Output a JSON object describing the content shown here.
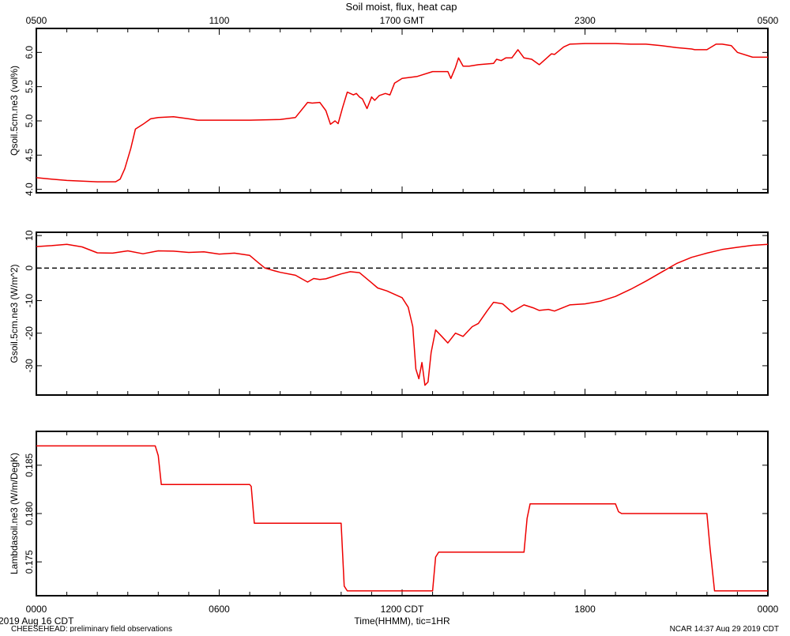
{
  "colors": {
    "series": "#ee0000",
    "frame": "#000000",
    "background": "#ffffff"
  },
  "page": {
    "title": "Soil moist, flux, heat cap",
    "footer_left_date": "2019 Aug 16 CDT",
    "footer_left_project": "CHEESEHEAD: preliminary field observations",
    "footer_right": "NCAR 14:37 Aug 29 2019 CDT"
  },
  "x_axis": {
    "range": [
      0,
      24
    ],
    "top_ticks": [
      {
        "x": 0,
        "label": "0500"
      },
      {
        "x": 6,
        "label": "1100"
      },
      {
        "x": 12,
        "label": "1700 GMT"
      },
      {
        "x": 18,
        "label": "2300"
      },
      {
        "x": 24,
        "label": "0500"
      }
    ],
    "bottom_ticks": [
      {
        "x": 0,
        "label": "0000"
      },
      {
        "x": 6,
        "label": "0600"
      },
      {
        "x": 12,
        "label": "1200 CDT"
      },
      {
        "x": 18,
        "label": "1800"
      },
      {
        "x": 24,
        "label": "0000"
      }
    ],
    "xlabel": "Time(HHMM), tic=1HR"
  },
  "chart_data": [
    {
      "type": "line",
      "ylabel": "Qsoil.5cm.ne3 (vol%)",
      "ylim": [
        3.95,
        6.35
      ],
      "yticks": [
        4.0,
        4.5,
        5.0,
        5.5,
        6.0
      ],
      "ytick_labels": [
        "4.0",
        "4.5",
        "5.0",
        "5.5",
        "6.0"
      ],
      "zero_line": false,
      "series": [
        {
          "x": [
            0,
            0.5,
            1,
            1.5,
            2,
            2.3,
            2.6,
            2.75,
            2.9,
            3.1,
            3.25,
            3.5,
            3.75,
            4,
            4.5,
            5,
            5.3,
            5.6,
            5.8,
            6,
            6.5,
            7,
            8,
            8.5,
            8.9,
            9.05,
            9.3,
            9.5,
            9.65,
            9.8,
            9.9,
            10.05,
            10.2,
            10.4,
            10.5,
            10.6,
            10.7,
            10.85,
            11,
            11.1,
            11.25,
            11.45,
            11.6,
            11.75,
            12,
            12.5,
            13,
            13.5,
            13.6,
            13.75,
            13.85,
            14,
            14.2,
            14.5,
            15,
            15.1,
            15.25,
            15.4,
            15.6,
            15.8,
            16,
            16.25,
            16.5,
            16.9,
            17,
            17.3,
            17.5,
            18,
            18.5,
            19,
            19.5,
            20,
            20.5,
            21,
            21.5,
            21.6,
            22,
            22.3,
            22.5,
            22.8,
            23,
            23.5,
            24
          ],
          "y": [
            4.17,
            4.15,
            4.13,
            4.12,
            4.11,
            4.11,
            4.11,
            4.15,
            4.3,
            4.6,
            4.88,
            4.95,
            5.03,
            5.05,
            5.06,
            5.03,
            5.01,
            5.01,
            5.01,
            5.01,
            5.01,
            5.01,
            5.02,
            5.05,
            5.27,
            5.26,
            5.27,
            5.15,
            4.95,
            5.0,
            4.96,
            5.2,
            5.42,
            5.38,
            5.4,
            5.35,
            5.32,
            5.18,
            5.35,
            5.3,
            5.37,
            5.4,
            5.38,
            5.55,
            5.62,
            5.65,
            5.72,
            5.72,
            5.62,
            5.78,
            5.92,
            5.8,
            5.8,
            5.82,
            5.84,
            5.9,
            5.88,
            5.92,
            5.92,
            6.04,
            5.92,
            5.9,
            5.82,
            5.98,
            5.97,
            6.08,
            6.12,
            6.13,
            6.13,
            6.13,
            6.12,
            6.12,
            6.1,
            6.07,
            6.05,
            6.04,
            6.04,
            6.12,
            6.12,
            6.1,
            6.0,
            5.93,
            5.93
          ]
        }
      ]
    },
    {
      "type": "line",
      "ylabel": "Gsoil.5cm.ne3 (W/m^2)",
      "ylim": [
        -39,
        11
      ],
      "yticks": [
        -30,
        -20,
        -10,
        0,
        10
      ],
      "ytick_labels": [
        "-30",
        "-20",
        "-10",
        "0",
        "10"
      ],
      "zero_line": true,
      "series": [
        {
          "x": [
            0,
            0.5,
            1,
            1.5,
            2,
            2.5,
            3,
            3.5,
            4,
            4.5,
            5,
            5.5,
            6,
            6.5,
            7,
            7.3,
            7.5,
            7.8,
            8,
            8.5,
            8.9,
            9.1,
            9.3,
            9.5,
            10,
            10.3,
            10.6,
            11,
            11.2,
            11.5,
            12,
            12.2,
            12.35,
            12.45,
            12.55,
            12.65,
            12.75,
            12.85,
            12.95,
            13.1,
            13.3,
            13.5,
            13.75,
            14,
            14.3,
            14.5,
            14.8,
            15,
            15.3,
            15.6,
            16,
            16.3,
            16.5,
            16.8,
            17,
            17.5,
            18,
            18.5,
            19,
            19.5,
            20,
            20.5,
            21,
            21.5,
            22,
            22.5,
            23,
            23.5,
            24
          ],
          "y": [
            6.6,
            6.9,
            7.3,
            6.5,
            4.7,
            4.6,
            5.3,
            4.4,
            5.3,
            5.2,
            4.8,
            5.0,
            4.3,
            4.6,
            3.9,
            1.5,
            0,
            -0.8,
            -1.3,
            -2.2,
            -4.3,
            -3.2,
            -3.5,
            -3.3,
            -1.8,
            -1.1,
            -1.4,
            -4.5,
            -6.1,
            -7.0,
            -9.1,
            -12,
            -18,
            -31,
            -34,
            -29,
            -36,
            -35,
            -26,
            -19,
            -21,
            -23,
            -20,
            -21,
            -18,
            -17,
            -13,
            -10.5,
            -11,
            -13.5,
            -11.3,
            -12.2,
            -13,
            -12.7,
            -13.2,
            -11.3,
            -11.0,
            -10.2,
            -8.7,
            -6.5,
            -4.0,
            -1.3,
            1.4,
            3.3,
            4.6,
            5.7,
            6.4,
            7.0,
            7.3
          ]
        }
      ]
    },
    {
      "type": "line",
      "ylabel": "Lambdasoil.ne3 (W/m/DegK)",
      "ylim": [
        0.1715,
        0.1885
      ],
      "yticks": [
        0.175,
        0.18,
        0.185
      ],
      "ytick_labels": [
        "0.175",
        "0.180",
        "0.185"
      ],
      "zero_line": false,
      "series": [
        {
          "x": [
            0,
            3.9,
            4.0,
            4.1,
            7.0,
            7.05,
            7.15,
            10.0,
            10.1,
            10.2,
            13.0,
            13.1,
            13.2,
            16.0,
            16.1,
            16.2,
            19.0,
            19.1,
            19.2,
            22.0,
            22.1,
            22.25,
            24
          ],
          "y": [
            0.187,
            0.187,
            0.186,
            0.183,
            0.183,
            0.1828,
            0.179,
            0.179,
            0.1725,
            0.172,
            0.172,
            0.1755,
            0.176,
            0.176,
            0.1795,
            0.181,
            0.181,
            0.1802,
            0.18,
            0.18,
            0.1765,
            0.172,
            0.172
          ]
        }
      ]
    }
  ]
}
